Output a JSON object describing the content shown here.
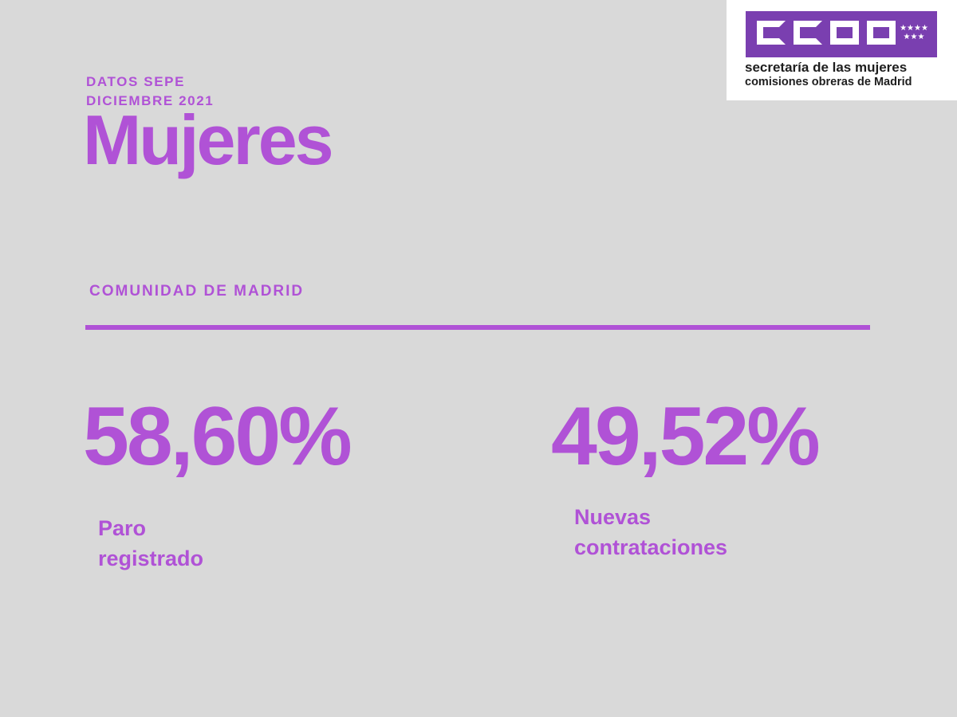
{
  "header": {
    "kicker_line1": "DATOS SEPE",
    "kicker_line2": "DICIEMBRE 2021",
    "title": "Mujeres"
  },
  "logo": {
    "wordmark": "CCOO",
    "stars": "★★★★★★★",
    "line1": "secretaría de las mujeres",
    "line2": "comisiones obreras de Madrid",
    "banner_color": "#7a3fb0"
  },
  "section": {
    "label": "COMUNIDAD DE MADRID"
  },
  "stats": [
    {
      "value": "58,60%",
      "label_line1": "Paro",
      "label_line2": "registrado"
    },
    {
      "value": "49,52%",
      "label_line1": "Nuevas",
      "label_line2": "contrataciones"
    }
  ],
  "colors": {
    "accent": "#b052d6",
    "background": "#d9d9d9"
  }
}
